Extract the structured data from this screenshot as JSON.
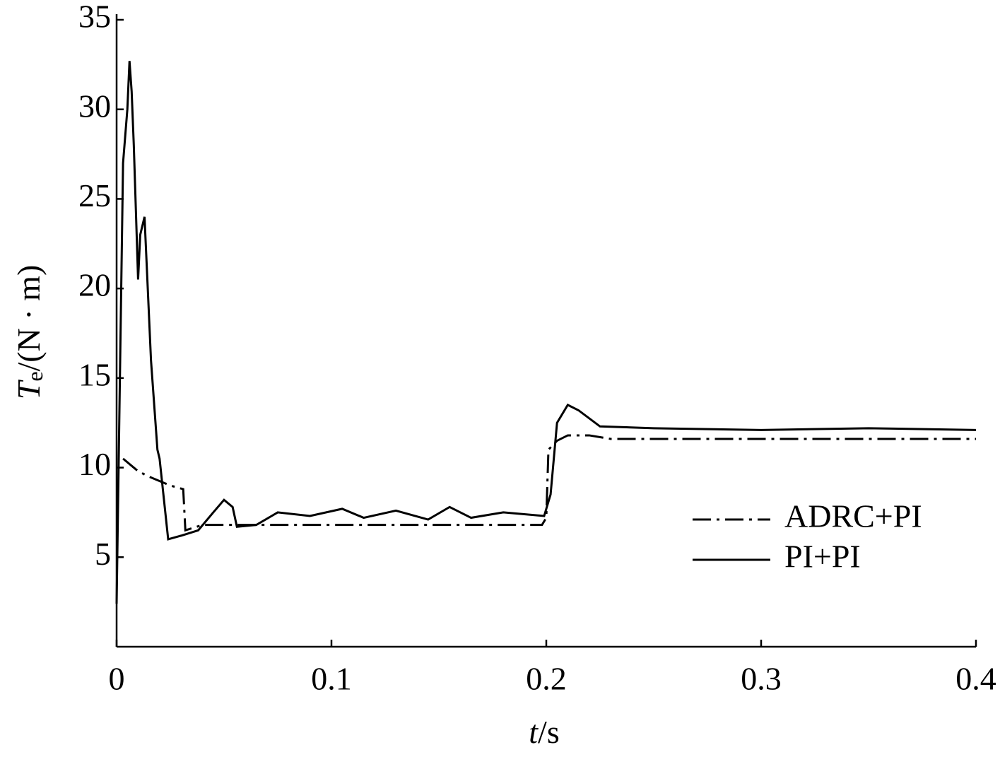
{
  "chart_data": {
    "type": "line",
    "x_label": {
      "symbol": "t",
      "unit": "/s"
    },
    "y_label": {
      "symbol": "T",
      "subscript": "e",
      "unit": "/(N · m)"
    },
    "xlim": [
      0,
      0.4
    ],
    "xticks": [
      0,
      0.1,
      0.2,
      0.3,
      0.4
    ],
    "ylim": [
      0,
      35
    ],
    "yticks": [
      5,
      10,
      15,
      20,
      25,
      30,
      35
    ],
    "legend": "right",
    "series": [
      {
        "name": "ADRC+PI",
        "color": "#000000",
        "style": "dashdot",
        "x": [
          0.003,
          0.01,
          0.015,
          0.025,
          0.031,
          0.032,
          0.04,
          0.1,
          0.198,
          0.2,
          0.201,
          0.205,
          0.21,
          0.22,
          0.23,
          0.4
        ],
        "values": [
          10.5,
          9.8,
          9.5,
          9,
          8.8,
          6.5,
          6.8,
          6.8,
          6.8,
          7.2,
          11,
          11.5,
          11.8,
          11.8,
          11.6,
          11.6
        ]
      },
      {
        "name": "PI+PI",
        "color": "#000000",
        "style": "solid",
        "x": [
          0,
          0.003,
          0.005,
          0.006,
          0.007,
          0.008,
          0.01,
          0.011,
          0.013,
          0.016,
          0.019,
          0.02,
          0.024,
          0.03,
          0.038,
          0.045,
          0.05,
          0.054,
          0.056,
          0.065,
          0.075,
          0.09,
          0.105,
          0.115,
          0.13,
          0.145,
          0.155,
          0.165,
          0.18,
          0.199,
          0.202,
          0.205,
          0.21,
          0.215,
          0.225,
          0.25,
          0.3,
          0.35,
          0.4
        ],
        "values": [
          2.4,
          27,
          30,
          32.7,
          31,
          28,
          20.5,
          23,
          24,
          16,
          11,
          10.5,
          6,
          6.2,
          6.5,
          7.5,
          8.2,
          7.8,
          6.7,
          6.8,
          7.5,
          7.3,
          7.7,
          7.2,
          7.6,
          7.1,
          7.8,
          7.2,
          7.5,
          7.3,
          8.5,
          12.5,
          13.5,
          13.2,
          12.3,
          12.2,
          12.1,
          12.2,
          12.1
        ]
      }
    ]
  }
}
